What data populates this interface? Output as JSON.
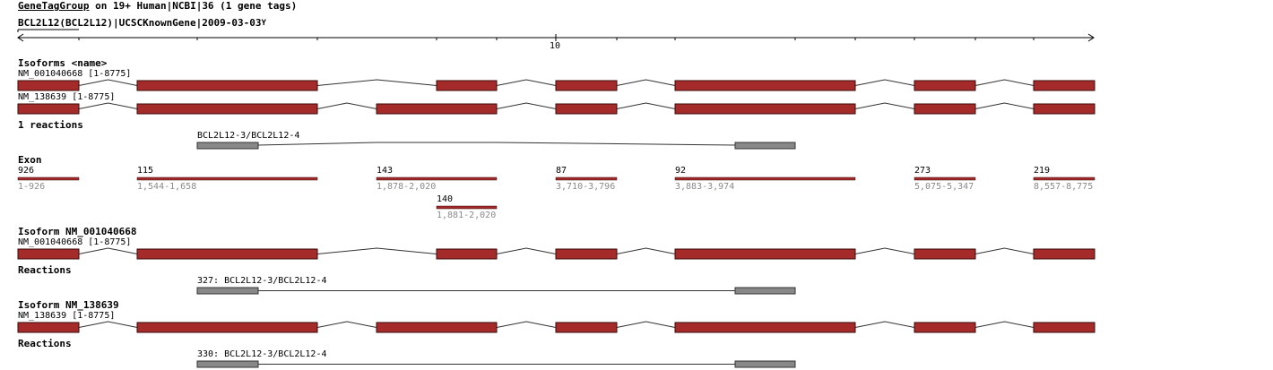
{
  "header": {
    "title_link": "GeneTagGroup",
    "title_rest": " on 19+ Human|NCBI|36 (1 gene tags)",
    "gene_tag": "BCL2L12(BCL2L12)|UCSCKnownGene|2009-03-03",
    "caret": "Y"
  },
  "ruler": {
    "label": "10"
  },
  "sections": {
    "isoforms": "Isoforms <name>",
    "reactions_count": "1 reactions",
    "exon": "Exon",
    "isoform_a": "Isoform NM_001040668",
    "reactions_a": "Reactions",
    "isoform_b": "Isoform NM_138639",
    "reactions_b": "Reactions"
  },
  "isoforms": [
    {
      "label": "NM_001040668 [1-8775]",
      "exons": [
        0,
        1,
        3,
        4,
        5,
        6,
        7
      ]
    },
    {
      "label": "NM_138639 [1-8775]",
      "exons": [
        0,
        1,
        2,
        4,
        5,
        6,
        7
      ]
    }
  ],
  "reaction": {
    "label": "BCL2L12-3/BCL2L12-4",
    "label_a": "327: BCL2L12-3/BCL2L12-4",
    "label_b": "330: BCL2L12-3/BCL2L12-4"
  },
  "exons": [
    {
      "length": "926",
      "range": "1-926"
    },
    {
      "length": "115",
      "range": "1,544-1,658"
    },
    {
      "length": "143",
      "range": "1,878-2,020"
    },
    {
      "length": "140",
      "range": "1,881-2,020"
    },
    {
      "length": "87",
      "range": "3,710-3,796"
    },
    {
      "length": "92",
      "range": "3,883-3,974"
    },
    {
      "length": "273",
      "range": "5,075-5,347"
    },
    {
      "length": "219",
      "range": "8,557-8,775"
    }
  ],
  "colors": {
    "exon_fill": "#a52a2a",
    "exon_stroke": "#3a0a0a",
    "reaction_fill": "#888888",
    "reaction_stroke": "#333333",
    "intron": "#333333",
    "axis": "#000000"
  }
}
